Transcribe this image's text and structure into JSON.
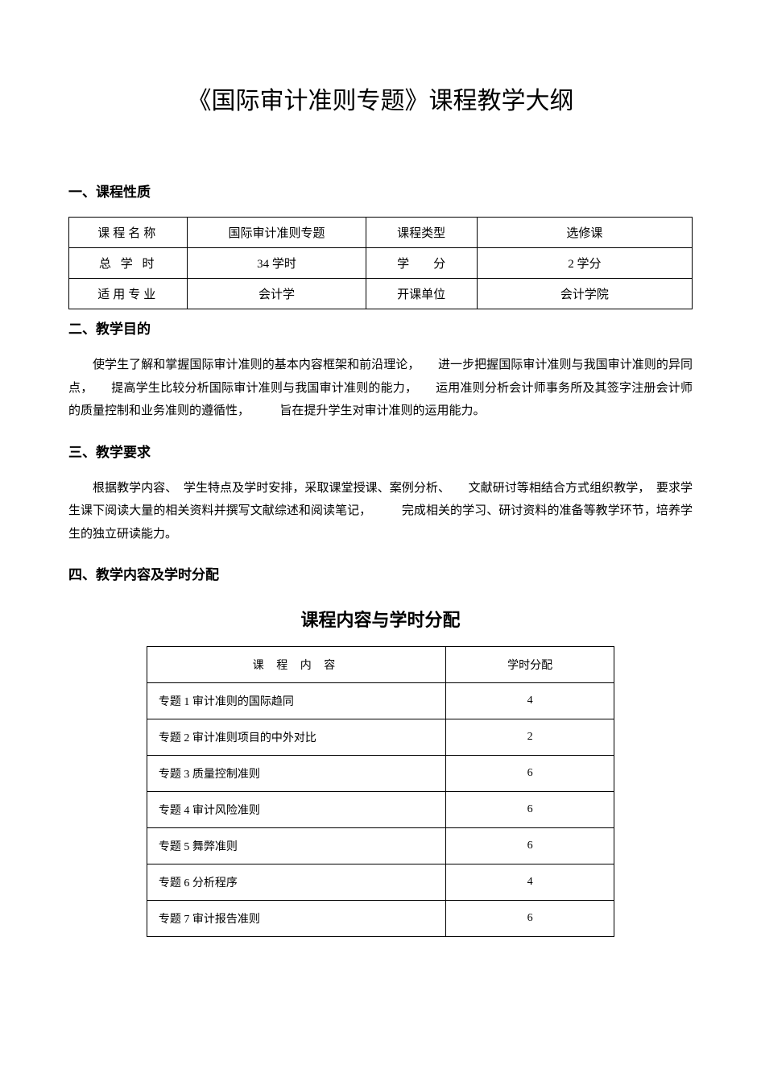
{
  "title": "《国际审计准则专题》课程教学大纲",
  "section1": {
    "heading": "一、课程性质",
    "rows": [
      {
        "l1": "课程名称",
        "v1": "国际审计准则专题",
        "l2": "课程类型",
        "v2": "选修课"
      },
      {
        "l1": "总 学 时",
        "v1": "34 学时",
        "l2": "学　　分",
        "v2": "2 学分"
      },
      {
        "l1": "适用专业",
        "v1": "会计学",
        "l2": "开课单位",
        "v2": "会计学院"
      }
    ]
  },
  "section2": {
    "heading": "二、教学目的",
    "body": "使学生了解和掌握国际审计准则的基本内容框架和前沿理论，　　进一步把握国际审计准则与我国审计准则的异同点，　　提高学生比较分析国际审计准则与我国审计准则的能力，　　运用准则分析会计师事务所及其签字注册会计师的质量控制和业务准则的遵循性，　　　旨在提升学生对审计准则的运用能力。"
  },
  "section3": {
    "heading": "三、教学要求",
    "body": "根据教学内容、　学生特点及学时安排，采取课堂授课、案例分析、　　文献研讨等相结合方式组织教学，　要求学生课下阅读大量的相关资料并撰写文献综述和阅读笔记，　　　完成相关的学习、研讨资料的准备等教学环节，培养学生的独立研读能力。"
  },
  "section4": {
    "heading": "四、教学内容及学时分配",
    "subtitle": "课程内容与学时分配",
    "header": {
      "content": "课 程 内 容",
      "hours": "学时分配"
    },
    "rows": [
      {
        "content": "专题 1  审计准则的国际趋同",
        "hours": "4"
      },
      {
        "content": "专题 2  审计准则项目的中外对比",
        "hours": "2"
      },
      {
        "content": "专题 3  质量控制准则",
        "hours": "6"
      },
      {
        "content": "专题 4  审计风险准则",
        "hours": "6"
      },
      {
        "content": "专题 5  舞弊准则",
        "hours": "6"
      },
      {
        "content": "专题 6  分析程序",
        "hours": "4"
      },
      {
        "content": "专题 7  审计报告准则",
        "hours": "6"
      }
    ]
  }
}
